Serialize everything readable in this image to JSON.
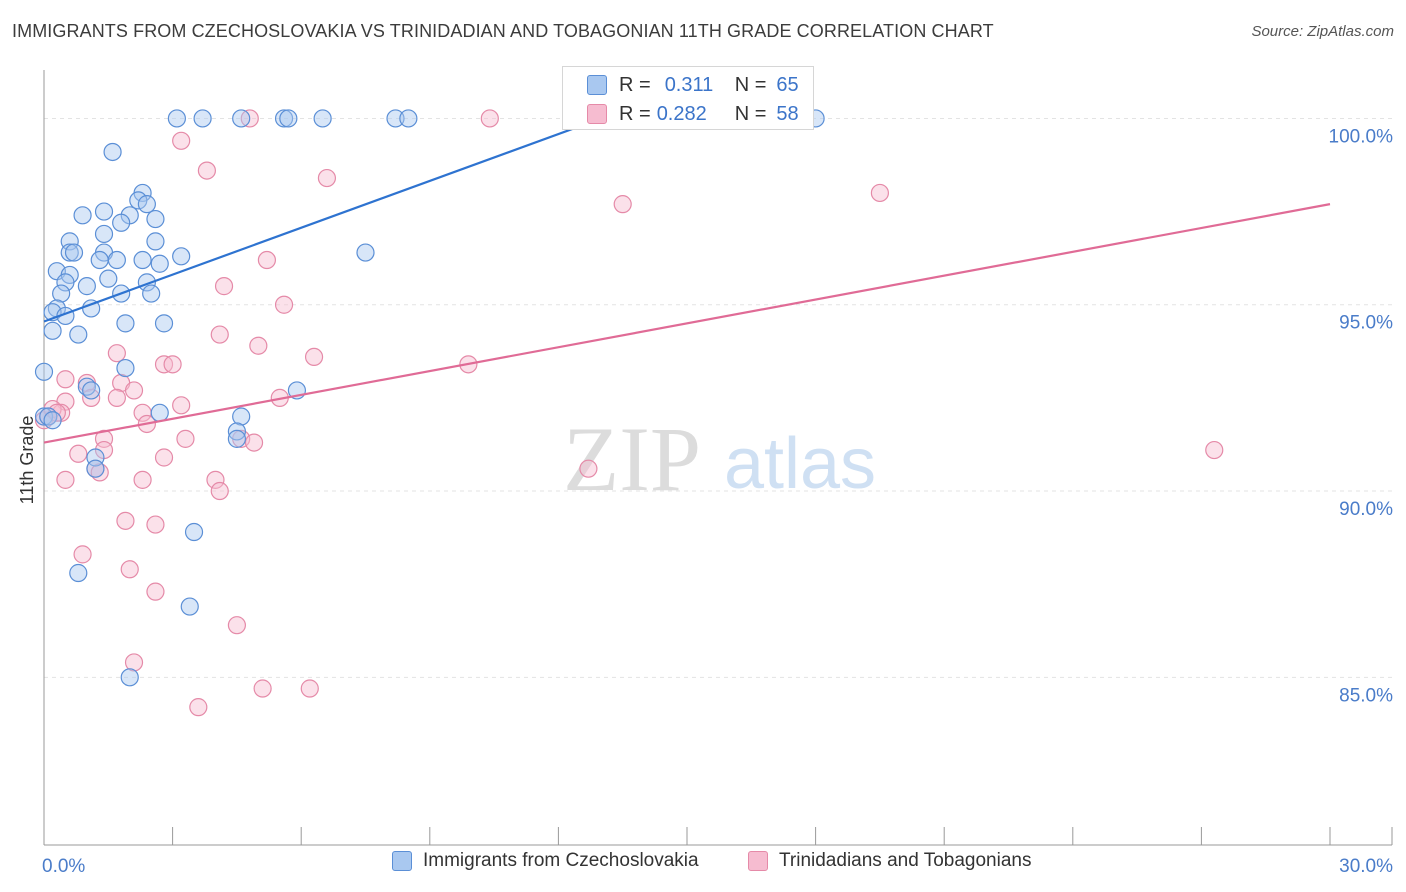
{
  "title": "IMMIGRANTS FROM CZECHOSLOVAKIA VS TRINIDADIAN AND TOBAGONIAN 11TH GRADE CORRELATION CHART",
  "source": "Source: ZipAtlas.com",
  "watermark": {
    "zip": "ZIP",
    "atlas": "atlas"
  },
  "colors": {
    "blue_fill": "#a9c8f0",
    "blue_stroke": "#5b8fd6",
    "blue_line": "#2e73d0",
    "pink_fill": "#f6bcd0",
    "pink_stroke": "#e58aa8",
    "pink_line": "#e06b96",
    "tick_label": "#4a7cc9",
    "grid": "#e3e3e3"
  },
  "stats": [
    {
      "r_label": "R =",
      "r_value": "0.311",
      "n_label": "N =",
      "n_value": "65",
      "series": "blue"
    },
    {
      "r_label": "R =",
      "r_value": "0.282",
      "n_label": "N =",
      "n_value": "58",
      "series": "pink"
    }
  ],
  "legend": [
    {
      "label": "Immigrants from Czechoslovakia",
      "series": "blue"
    },
    {
      "label": "Trinidadians and Tobagonians",
      "series": "pink"
    }
  ],
  "chart_data": {
    "type": "scatter",
    "title": "IMMIGRANTS FROM CZECHOSLOVAKIA VS TRINIDADIAN AND TOBAGONIAN 11TH GRADE CORRELATION CHART",
    "xlabel": "",
    "ylabel": "11th Grade",
    "xlim": [
      0,
      30
    ],
    "ylim": [
      80.5,
      101.3
    ],
    "x_tick_labels": [
      {
        "value": 0,
        "label": "0.0%"
      },
      {
        "value": 30,
        "label": "30.0%"
      }
    ],
    "y_tick_labels": [
      {
        "value": 100,
        "label": "100.0%"
      },
      {
        "value": 95,
        "label": "95.0%"
      },
      {
        "value": 90,
        "label": "90.0%"
      },
      {
        "value": 85,
        "label": "85.0%"
      }
    ],
    "grid": true,
    "legend_position": "bottom",
    "series": [
      {
        "name": "Immigrants from Czechoslovakia",
        "color": "blue",
        "points": [
          [
            3.1,
            100
          ],
          [
            3.7,
            100
          ],
          [
            4.6,
            100
          ],
          [
            5.6,
            100
          ],
          [
            5.7,
            100
          ],
          [
            6.5,
            100
          ],
          [
            8.2,
            100
          ],
          [
            8.5,
            100
          ],
          [
            18.0,
            100
          ],
          [
            1.6,
            99.1
          ],
          [
            2.3,
            98.0
          ],
          [
            2.2,
            97.8
          ],
          [
            2.4,
            97.7
          ],
          [
            1.4,
            97.5
          ],
          [
            0.9,
            97.4
          ],
          [
            2.0,
            97.4
          ],
          [
            2.6,
            97.3
          ],
          [
            1.8,
            97.2
          ],
          [
            0.6,
            96.7
          ],
          [
            1.4,
            96.9
          ],
          [
            2.6,
            96.7
          ],
          [
            0.6,
            96.4
          ],
          [
            1.4,
            96.4
          ],
          [
            0.7,
            96.4
          ],
          [
            1.3,
            96.2
          ],
          [
            1.7,
            96.2
          ],
          [
            2.3,
            96.2
          ],
          [
            3.2,
            96.3
          ],
          [
            2.7,
            96.1
          ],
          [
            7.5,
            96.4
          ],
          [
            0.3,
            95.9
          ],
          [
            0.6,
            95.8
          ],
          [
            1.5,
            95.7
          ],
          [
            2.4,
            95.6
          ],
          [
            0.5,
            95.6
          ],
          [
            1.0,
            95.5
          ],
          [
            0.4,
            95.3
          ],
          [
            1.8,
            95.3
          ],
          [
            2.5,
            95.3
          ],
          [
            0.3,
            94.9
          ],
          [
            1.1,
            94.9
          ],
          [
            0.2,
            94.8
          ],
          [
            0.5,
            94.7
          ],
          [
            1.9,
            94.5
          ],
          [
            2.8,
            94.5
          ],
          [
            0.2,
            94.3
          ],
          [
            0.8,
            94.2
          ],
          [
            0.0,
            93.2
          ],
          [
            1.9,
            93.3
          ],
          [
            1.0,
            92.8
          ],
          [
            1.1,
            92.7
          ],
          [
            5.9,
            92.7
          ],
          [
            2.7,
            92.1
          ],
          [
            4.6,
            92.0
          ],
          [
            4.5,
            91.6
          ],
          [
            4.5,
            91.4
          ],
          [
            1.2,
            90.9
          ],
          [
            1.2,
            90.6
          ],
          [
            3.5,
            88.9
          ],
          [
            0.8,
            87.8
          ],
          [
            3.4,
            86.9
          ],
          [
            2.0,
            85.0
          ],
          [
            0.0,
            92.0
          ],
          [
            0.1,
            92.0
          ],
          [
            0.2,
            91.9
          ]
        ],
        "trend": [
          [
            0,
            94.55
          ],
          [
            13.0,
            100.0
          ]
        ]
      },
      {
        "name": "Trinidadians and Tobagonians",
        "color": "pink",
        "points": [
          [
            4.8,
            100
          ],
          [
            10.4,
            100
          ],
          [
            3.2,
            99.4
          ],
          [
            3.8,
            98.6
          ],
          [
            6.6,
            98.4
          ],
          [
            13.5,
            97.7
          ],
          [
            19.5,
            98.0
          ],
          [
            5.2,
            96.2
          ],
          [
            4.2,
            95.5
          ],
          [
            5.6,
            95.0
          ],
          [
            4.1,
            94.2
          ],
          [
            5.0,
            93.9
          ],
          [
            6.3,
            93.6
          ],
          [
            1.7,
            93.7
          ],
          [
            2.8,
            93.4
          ],
          [
            3.0,
            93.4
          ],
          [
            9.9,
            93.4
          ],
          [
            0.5,
            93.0
          ],
          [
            1.0,
            92.9
          ],
          [
            1.8,
            92.9
          ],
          [
            2.1,
            92.7
          ],
          [
            1.1,
            92.5
          ],
          [
            1.7,
            92.5
          ],
          [
            0.5,
            92.4
          ],
          [
            5.5,
            92.5
          ],
          [
            3.2,
            92.3
          ],
          [
            0.4,
            92.1
          ],
          [
            2.3,
            92.1
          ],
          [
            2.4,
            91.8
          ],
          [
            3.3,
            91.4
          ],
          [
            4.6,
            91.4
          ],
          [
            1.4,
            91.4
          ],
          [
            4.9,
            91.3
          ],
          [
            1.4,
            91.1
          ],
          [
            0.8,
            91.0
          ],
          [
            2.8,
            90.9
          ],
          [
            1.2,
            90.6
          ],
          [
            1.3,
            90.5
          ],
          [
            12.7,
            90.6
          ],
          [
            0.5,
            90.3
          ],
          [
            2.3,
            90.3
          ],
          [
            4.0,
            90.3
          ],
          [
            4.1,
            90.0
          ],
          [
            27.3,
            91.1
          ],
          [
            1.9,
            89.2
          ],
          [
            2.6,
            89.1
          ],
          [
            0.9,
            88.3
          ],
          [
            2.0,
            87.9
          ],
          [
            2.6,
            87.3
          ],
          [
            4.5,
            86.4
          ],
          [
            2.1,
            85.4
          ],
          [
            5.1,
            84.7
          ],
          [
            6.2,
            84.7
          ],
          [
            3.6,
            84.2
          ],
          [
            0.0,
            91.9
          ],
          [
            0.1,
            92.0
          ],
          [
            0.2,
            92.2
          ],
          [
            0.3,
            92.1
          ]
        ],
        "trend": [
          [
            0,
            91.3
          ],
          [
            30,
            97.7
          ]
        ]
      }
    ]
  }
}
